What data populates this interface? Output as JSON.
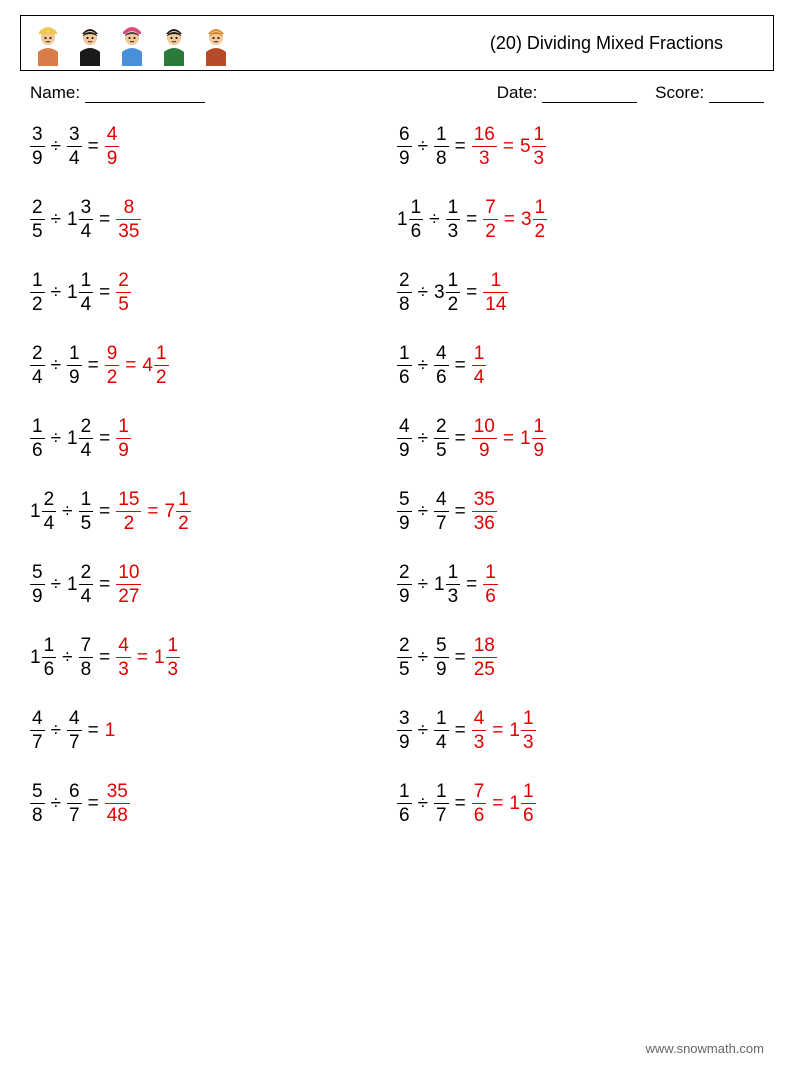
{
  "title": "(20) Dividing Mixed Fractions",
  "meta": {
    "name_label": "Name:",
    "date_label": "Date:",
    "score_label": "Score:",
    "name_line_width": 120,
    "date_line_width": 95,
    "score_line_width": 55
  },
  "avatars": [
    {
      "hair": "#f0c94a",
      "hat": "#f0c94a",
      "body": "#d97b4a"
    },
    {
      "hair": "#1a1a1a",
      "hat": "none",
      "body": "#1a1a1a"
    },
    {
      "hair": "#444",
      "hat": "#d94b7b",
      "body": "#4a90d9"
    },
    {
      "hair": "#1a1a1a",
      "hat": "none",
      "body": "#2a7a3a"
    },
    {
      "hair": "#d9852a",
      "hat": "none",
      "body": "#b84a2a"
    }
  ],
  "colors": {
    "answer": "#e00000",
    "text": "#000000",
    "border": "#000000",
    "bg": "#ffffff",
    "footer": "#666666"
  },
  "font": {
    "title_size": 18,
    "problem_size": 19,
    "meta_size": 17
  },
  "left": [
    {
      "a": {
        "w": null,
        "n": 3,
        "d": 9
      },
      "b": {
        "w": null,
        "n": 3,
        "d": 4
      },
      "ans1": {
        "w": null,
        "n": 4,
        "d": 9
      },
      "ans2": null
    },
    {
      "a": {
        "w": null,
        "n": 2,
        "d": 5
      },
      "b": {
        "w": 1,
        "n": 3,
        "d": 4
      },
      "ans1": {
        "w": null,
        "n": 8,
        "d": 35
      },
      "ans2": null
    },
    {
      "a": {
        "w": null,
        "n": 1,
        "d": 2
      },
      "b": {
        "w": 1,
        "n": 1,
        "d": 4
      },
      "ans1": {
        "w": null,
        "n": 2,
        "d": 5
      },
      "ans2": null
    },
    {
      "a": {
        "w": null,
        "n": 2,
        "d": 4
      },
      "b": {
        "w": null,
        "n": 1,
        "d": 9
      },
      "ans1": {
        "w": null,
        "n": 9,
        "d": 2
      },
      "ans2": {
        "w": 4,
        "n": 1,
        "d": 2
      }
    },
    {
      "a": {
        "w": null,
        "n": 1,
        "d": 6
      },
      "b": {
        "w": 1,
        "n": 2,
        "d": 4
      },
      "ans1": {
        "w": null,
        "n": 1,
        "d": 9
      },
      "ans2": null
    },
    {
      "a": {
        "w": 1,
        "n": 2,
        "d": 4
      },
      "b": {
        "w": null,
        "n": 1,
        "d": 5
      },
      "ans1": {
        "w": null,
        "n": 15,
        "d": 2
      },
      "ans2": {
        "w": 7,
        "n": 1,
        "d": 2
      }
    },
    {
      "a": {
        "w": null,
        "n": 5,
        "d": 9
      },
      "b": {
        "w": 1,
        "n": 2,
        "d": 4
      },
      "ans1": {
        "w": null,
        "n": 10,
        "d": 27
      },
      "ans2": null
    },
    {
      "a": {
        "w": 1,
        "n": 1,
        "d": 6
      },
      "b": {
        "w": null,
        "n": 7,
        "d": 8
      },
      "ans1": {
        "w": null,
        "n": 4,
        "d": 3
      },
      "ans2": {
        "w": 1,
        "n": 1,
        "d": 3
      }
    },
    {
      "a": {
        "w": null,
        "n": 4,
        "d": 7
      },
      "b": {
        "w": null,
        "n": 4,
        "d": 7
      },
      "ans1": {
        "plain": "1"
      },
      "ans2": null
    },
    {
      "a": {
        "w": null,
        "n": 5,
        "d": 8
      },
      "b": {
        "w": null,
        "n": 6,
        "d": 7
      },
      "ans1": {
        "w": null,
        "n": 35,
        "d": 48
      },
      "ans2": null
    }
  ],
  "right": [
    {
      "a": {
        "w": null,
        "n": 6,
        "d": 9
      },
      "b": {
        "w": null,
        "n": 1,
        "d": 8
      },
      "ans1": {
        "w": null,
        "n": 16,
        "d": 3
      },
      "ans2": {
        "w": 5,
        "n": 1,
        "d": 3
      }
    },
    {
      "a": {
        "w": 1,
        "n": 1,
        "d": 6
      },
      "b": {
        "w": null,
        "n": 1,
        "d": 3
      },
      "ans1": {
        "w": null,
        "n": 7,
        "d": 2
      },
      "ans2": {
        "w": 3,
        "n": 1,
        "d": 2
      }
    },
    {
      "a": {
        "w": null,
        "n": 2,
        "d": 8
      },
      "b": {
        "w": 3,
        "n": 1,
        "d": 2
      },
      "ans1": {
        "w": null,
        "n": 1,
        "d": 14
      },
      "ans2": null
    },
    {
      "a": {
        "w": null,
        "n": 1,
        "d": 6
      },
      "b": {
        "w": null,
        "n": 4,
        "d": 6
      },
      "ans1": {
        "w": null,
        "n": 1,
        "d": 4
      },
      "ans2": null
    },
    {
      "a": {
        "w": null,
        "n": 4,
        "d": 9
      },
      "b": {
        "w": null,
        "n": 2,
        "d": 5
      },
      "ans1": {
        "w": null,
        "n": 10,
        "d": 9
      },
      "ans2": {
        "w": 1,
        "n": 1,
        "d": 9
      }
    },
    {
      "a": {
        "w": null,
        "n": 5,
        "d": 9
      },
      "b": {
        "w": null,
        "n": 4,
        "d": 7
      },
      "ans1": {
        "w": null,
        "n": 35,
        "d": 36
      },
      "ans2": null
    },
    {
      "a": {
        "w": null,
        "n": 2,
        "d": 9
      },
      "b": {
        "w": 1,
        "n": 1,
        "d": 3
      },
      "ans1": {
        "w": null,
        "n": 1,
        "d": 6
      },
      "ans2": null
    },
    {
      "a": {
        "w": null,
        "n": 2,
        "d": 5
      },
      "b": {
        "w": null,
        "n": 5,
        "d": 9
      },
      "ans1": {
        "w": null,
        "n": 18,
        "d": 25
      },
      "ans2": null
    },
    {
      "a": {
        "w": null,
        "n": 3,
        "d": 9
      },
      "b": {
        "w": null,
        "n": 1,
        "d": 4
      },
      "ans1": {
        "w": null,
        "n": 4,
        "d": 3
      },
      "ans2": {
        "w": 1,
        "n": 1,
        "d": 3
      }
    },
    {
      "a": {
        "w": null,
        "n": 1,
        "d": 6
      },
      "b": {
        "w": null,
        "n": 1,
        "d": 7
      },
      "ans1": {
        "w": null,
        "n": 7,
        "d": 6
      },
      "ans2": {
        "w": 1,
        "n": 1,
        "d": 6
      }
    }
  ],
  "footer": "www.snowmath.com"
}
